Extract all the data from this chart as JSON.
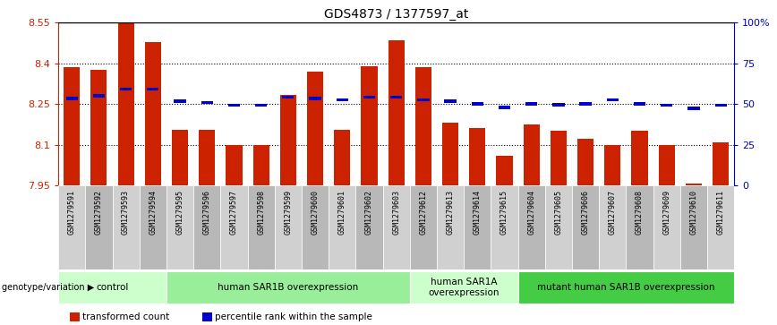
{
  "title": "GDS4873 / 1377597_at",
  "samples": [
    "GSM1279591",
    "GSM1279592",
    "GSM1279593",
    "GSM1279594",
    "GSM1279595",
    "GSM1279596",
    "GSM1279597",
    "GSM1279598",
    "GSM1279599",
    "GSM1279600",
    "GSM1279601",
    "GSM1279602",
    "GSM1279603",
    "GSM1279612",
    "GSM1279613",
    "GSM1279614",
    "GSM1279615",
    "GSM1279604",
    "GSM1279605",
    "GSM1279606",
    "GSM1279607",
    "GSM1279608",
    "GSM1279609",
    "GSM1279610",
    "GSM1279611"
  ],
  "bar_values": [
    8.385,
    8.375,
    8.55,
    8.48,
    8.155,
    8.155,
    8.1,
    8.1,
    8.285,
    8.37,
    8.155,
    8.39,
    8.485,
    8.385,
    8.18,
    8.16,
    8.06,
    8.175,
    8.15,
    8.12,
    8.1,
    8.15,
    8.1,
    7.955,
    8.11
  ],
  "percentile_values": [
    8.27,
    8.28,
    8.305,
    8.305,
    8.26,
    8.255,
    8.245,
    8.245,
    8.275,
    8.27,
    8.265,
    8.275,
    8.275,
    8.265,
    8.26,
    8.25,
    8.238,
    8.25,
    8.248,
    8.25,
    8.265,
    8.25,
    8.245,
    8.235,
    8.245
  ],
  "ymin": 7.95,
  "ymax": 8.55,
  "y_ticks": [
    7.95,
    8.1,
    8.25,
    8.4,
    8.55
  ],
  "y_tick_labels": [
    "7.95",
    "8.1",
    "8.25",
    "8.4",
    "8.55"
  ],
  "right_ticks": [
    0,
    25,
    50,
    75,
    100
  ],
  "right_tick_labels": [
    "0",
    "25",
    "50",
    "75",
    "100%"
  ],
  "bar_color": "#cc2200",
  "dot_color": "#0000cc",
  "groups": [
    {
      "label": "control",
      "start": 0,
      "end": 3,
      "color": "#ccffcc"
    },
    {
      "label": "human SAR1B overexpression",
      "start": 4,
      "end": 12,
      "color": "#99ee99"
    },
    {
      "label": "human SAR1A\noverexpression",
      "start": 13,
      "end": 16,
      "color": "#ccffcc"
    },
    {
      "label": "mutant human SAR1B overexpression",
      "start": 17,
      "end": 24,
      "color": "#44cc44"
    }
  ],
  "xlabel_left": "genotype/variation",
  "legend_items": [
    {
      "color": "#cc2200",
      "label": "transformed count"
    },
    {
      "color": "#0000cc",
      "label": "percentile rank within the sample"
    }
  ]
}
